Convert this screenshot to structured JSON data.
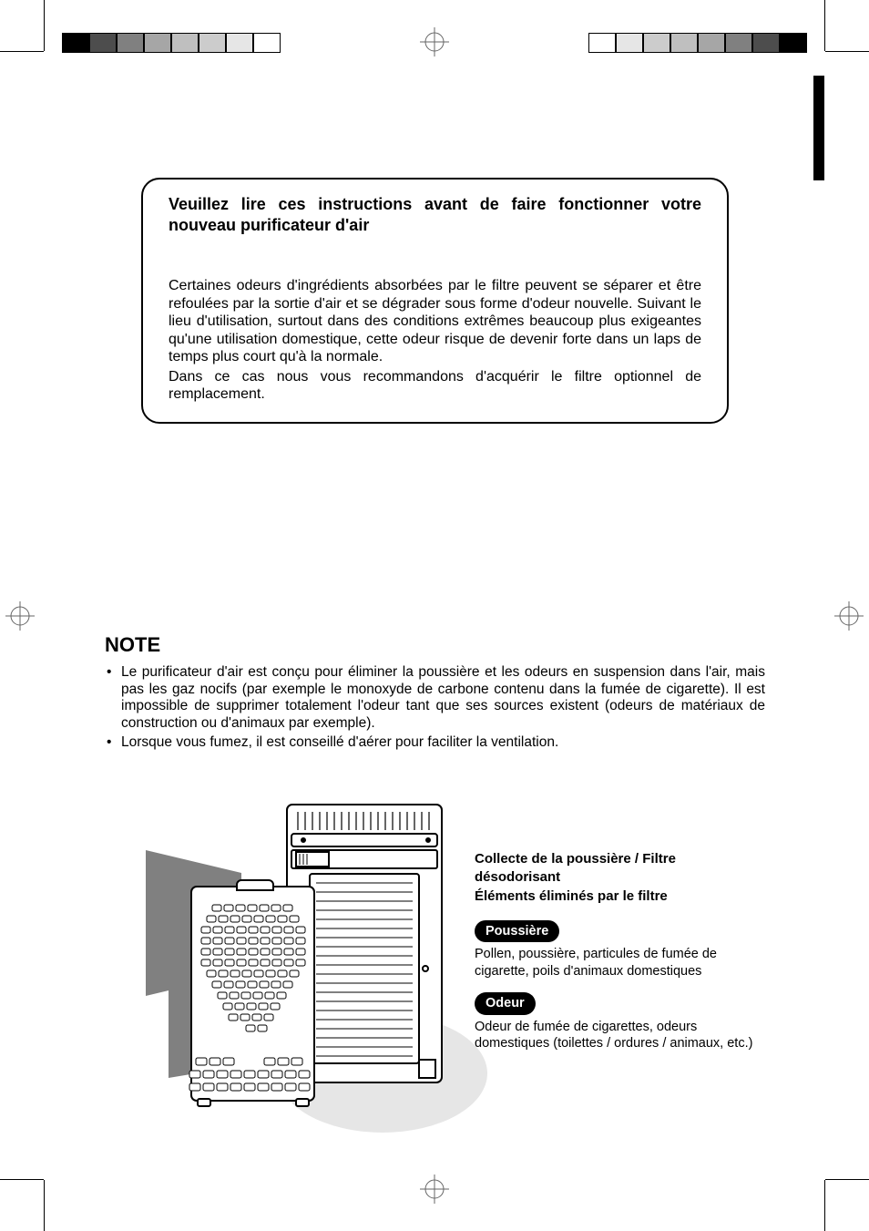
{
  "registration": {
    "colorbar_left": [
      "#000000",
      "#4d4d4d",
      "#808080",
      "#a6a6a6",
      "#bfbfbf",
      "#cccccc",
      "#e6e6e6",
      "#ffffff"
    ],
    "colorbar_right": [
      "#ffffff",
      "#e6e6e6",
      "#cccccc",
      "#bfbfbf",
      "#a6a6a6",
      "#808080",
      "#4d4d4d",
      "#000000"
    ],
    "edge_tab_color": "#000000"
  },
  "notice": {
    "title": "Veuillez lire ces instructions avant de faire fonctionner votre nouveau purificateur d'air",
    "para1": "Certaines odeurs d'ingrédients absorbées par le filtre peuvent se séparer et être refoulées par la sortie d'air et se dégrader sous forme d'odeur nouvelle. Suivant le lieu d'utilisation, surtout dans des conditions extrêmes beaucoup plus exigeantes qu'une utilisation domestique, cette odeur risque de devenir forte dans un laps de temps plus court qu'à la normale.",
    "para2": "Dans ce cas nous vous recommandons d'acquérir le filtre optionnel de remplacement."
  },
  "note": {
    "heading": "NOTE",
    "item1": "Le purificateur d'air est conçu pour éliminer la poussière et les odeurs en suspension dans l'air, mais pas les gaz nocifs (par exemple le monoxyde de carbone contenu dans la fumée de cigarette). Il est impossible de supprimer totalement l'odeur tant que ses sources existent (odeurs de matériaux de construction ou d'animaux par exemple).",
    "item2": "Lorsque vous fumez, il est conseillé d'aérer pour faciliter la ventilation."
  },
  "figure": {
    "caption_title1": "Collecte de la poussière / Filtre désodorisant",
    "caption_title2": "Éléments éliminés par le filtre",
    "pill1": "Poussière",
    "pill1_body": "Pollen, poussière, particules de fumée de cigarette, poils d'animaux domestiques",
    "pill2": "Odeur",
    "pill2_body": "Odeur de fumée de cigarettes, odeurs domestiques (toilettes / ordures / animaux, etc.)",
    "arrow_fill": "#808080",
    "device_stroke": "#000000",
    "device_fill": "#ffffff",
    "grille_fill": "#888888",
    "shadow_fill": "#e6e6e6"
  },
  "styling": {
    "page_bg": "#ffffff",
    "text_color": "#000000",
    "notice_border_radius": 20,
    "notice_border_width": 2,
    "pill_bg": "#000000",
    "pill_fg": "#ffffff",
    "title_fontsize": 18,
    "body_fontsize": 16,
    "note_heading_fontsize": 22,
    "note_body_fontsize": 15.5,
    "caption_fontsize": 15,
    "pill_fontsize": 14.5
  }
}
